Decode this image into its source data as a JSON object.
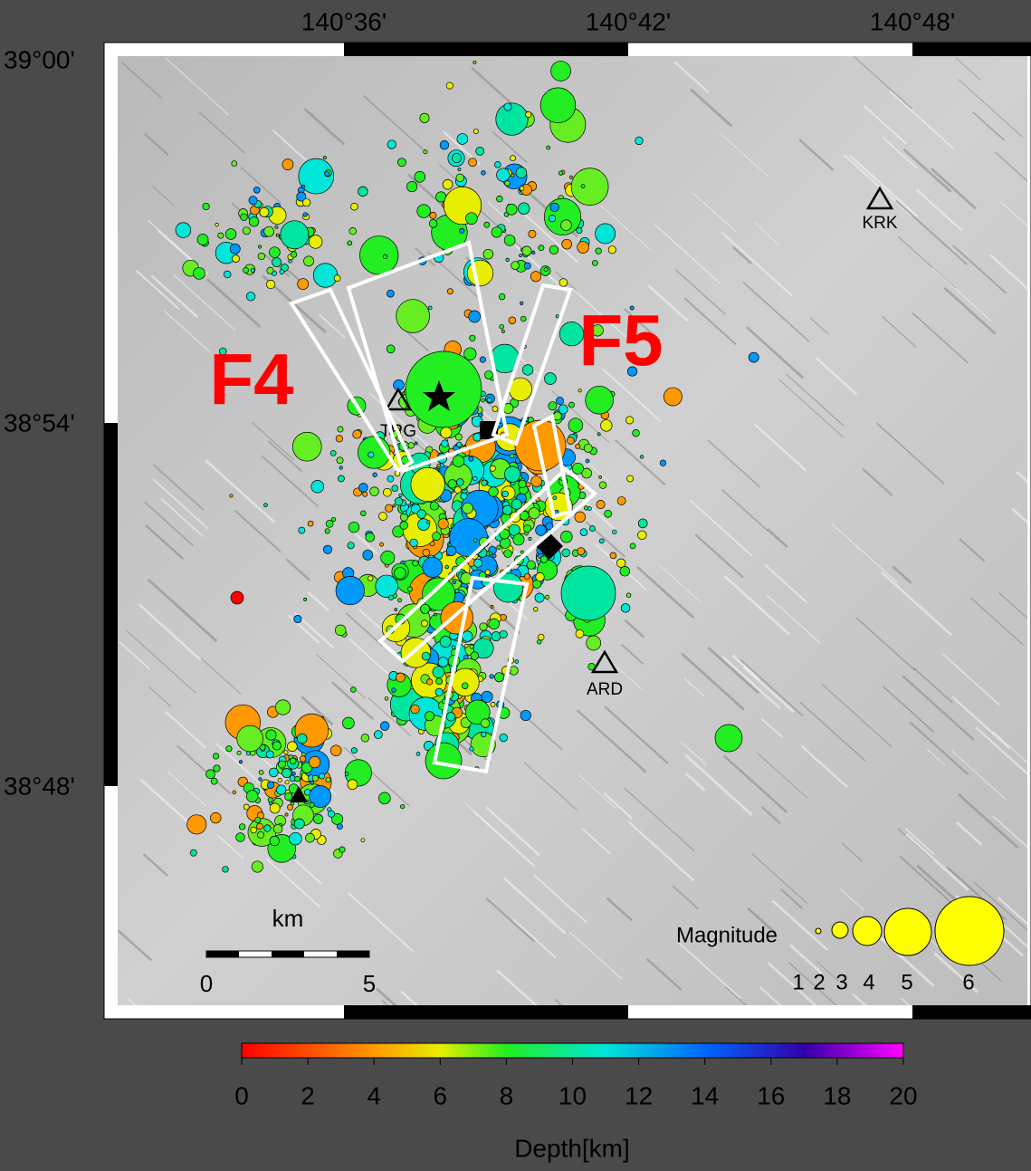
{
  "lon_labels": [
    "140°36'",
    "140°42'",
    "140°48'"
  ],
  "lat_labels": [
    "39°00'",
    "38°54'",
    "38°48'"
  ],
  "fault_labels": [
    "F4",
    "F5"
  ],
  "stations": [
    "KRK",
    "TRG",
    "ARD"
  ],
  "scale_bar": {
    "unit": "km",
    "ticks": [
      "0",
      "5"
    ]
  },
  "magnitude_legend": {
    "title": "Magnitude",
    "sizes": [
      "1",
      "2",
      "3",
      "4",
      "5",
      "6"
    ]
  },
  "depth_colorbar": {
    "title": "Depth[km]",
    "range": [
      0,
      20
    ],
    "ticks": [
      0,
      2,
      4,
      6,
      8,
      10,
      12,
      14,
      16,
      18,
      20
    ]
  }
}
